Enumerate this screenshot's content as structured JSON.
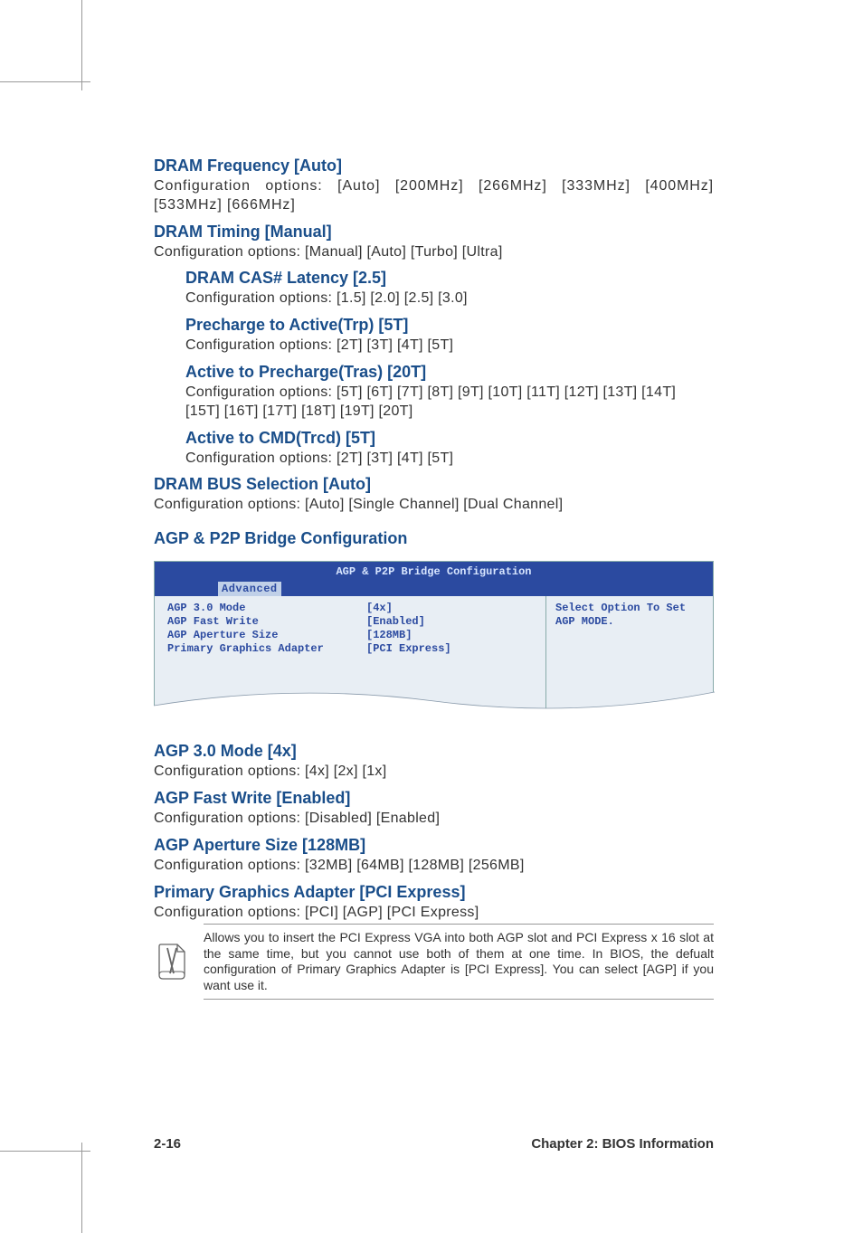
{
  "sections": [
    {
      "heading": "DRAM Frequency [Auto]",
      "body": "Configuration options: [Auto] [200MHz] [266MHz] [333MHz] [400MHz] [533MHz] [666MHz]",
      "indent": false,
      "body_spacing": "0.9px"
    },
    {
      "heading": "DRAM Timing [Manual]",
      "body": "Configuration options: [Manual] [Auto] [Turbo] [Ultra]",
      "indent": false
    },
    {
      "heading": "DRAM CAS# Latency [2.5]",
      "body": "Configuration options: [1.5] [2.0] [2.5] [3.0]",
      "indent": true
    },
    {
      "heading": "Precharge to Active(Trp) [5T]",
      "body": "Configuration options: [2T] [3T] [4T] [5T]",
      "indent": true
    },
    {
      "heading": "Active to Precharge(Tras) [20T]",
      "body": "Configuration options: [5T] [6T] [7T] [8T] [9T] [10T] [11T] [12T] [13T] [14T] [15T] [16T] [17T] [18T] [19T] [20T]",
      "indent": true
    },
    {
      "heading": "Active to CMD(Trcd) [5T]",
      "body": "Configuration options: [2T] [3T] [4T] [5T]",
      "indent": true
    },
    {
      "heading": "DRAM BUS Selection [Auto]",
      "body": "Configuration options: [Auto] [Single Channel] [Dual Channel]",
      "indent": false
    }
  ],
  "bridge_section_title": "AGP & P2P Bridge Configuration",
  "bios": {
    "title": "AGP & P2P Bridge Configuration",
    "tab": "Advanced",
    "rows": [
      {
        "label": "AGP 3.0 Mode",
        "value": "[4x]"
      },
      {
        "label": "AGP Fast Write",
        "value": "[Enabled]"
      },
      {
        "label": "AGP Aperture Size",
        "value": "[128MB]"
      },
      {
        "label": "Primary Graphics Adapter",
        "value": "[PCI Express]"
      }
    ],
    "help": "Select Option To Set AGP MODE."
  },
  "after_bios": [
    {
      "heading": "AGP 3.0 Mode [4x]",
      "body": "Configuration options: [4x] [2x] [1x]"
    },
    {
      "heading": "AGP Fast Write [Enabled]",
      "body": "Configuration options: [Disabled] [Enabled]"
    },
    {
      "heading": "AGP Aperture Size [128MB]",
      "body": "Configuration options: [32MB] [64MB] [128MB] [256MB]"
    },
    {
      "heading": "Primary Graphics Adapter [PCI Express]",
      "body": "Configuration options: [PCI] [AGP] [PCI Express]"
    }
  ],
  "note": "Allows you to insert the PCI Express VGA into both AGP slot and PCI Express x 16 slot at the same time, but you cannot use both of them at one time. In BIOS, the defualt configuration of Primary Graphics Adapter is [PCI Express]. You can select [AGP] if you want use it.",
  "footer": {
    "page": "2-16",
    "chapter": "Chapter 2: BIOS Information"
  }
}
